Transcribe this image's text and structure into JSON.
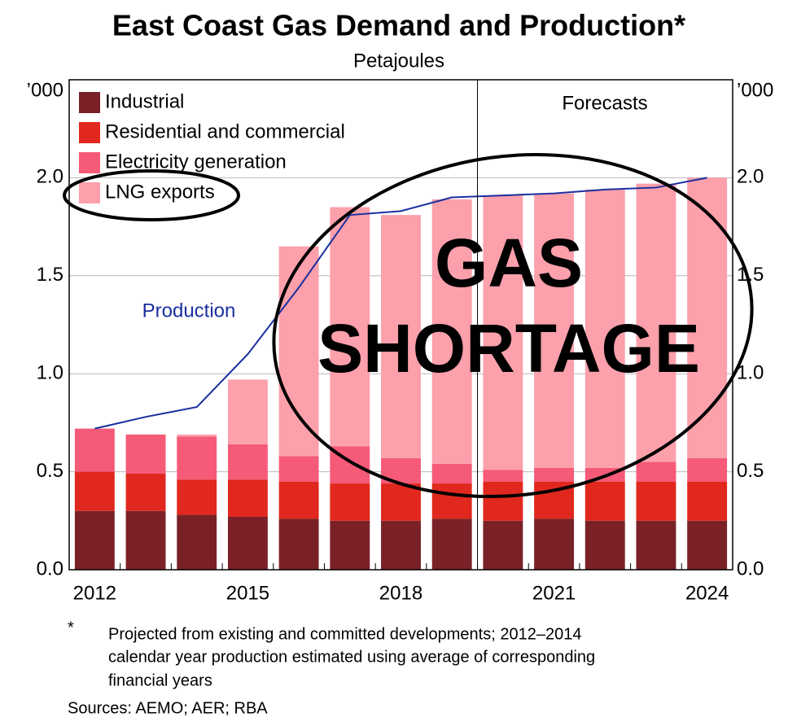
{
  "chart_data": {
    "type": "stacked_bar_line",
    "title": "East Coast Gas Demand and Production*",
    "subtitle": "Petajoules",
    "y_unit": "’000",
    "y2_unit": "’000",
    "categories": [
      "2012",
      null,
      null,
      "2015",
      null,
      null,
      "2018",
      null,
      null,
      "2021",
      null,
      null,
      "2024"
    ],
    "series": [
      {
        "name": "Industrial",
        "color": "#7a2128",
        "values": [
          0.3,
          0.3,
          0.28,
          0.27,
          0.26,
          0.25,
          0.25,
          0.26,
          0.25,
          0.26,
          0.25,
          0.25,
          0.25
        ]
      },
      {
        "name": "Residential and commercial",
        "color": "#e0281e",
        "values": [
          0.2,
          0.19,
          0.18,
          0.19,
          0.19,
          0.19,
          0.19,
          0.18,
          0.2,
          0.19,
          0.2,
          0.2,
          0.2
        ]
      },
      {
        "name": "Electricity generation",
        "color": "#f55a78",
        "values": [
          0.22,
          0.2,
          0.22,
          0.18,
          0.13,
          0.19,
          0.13,
          0.1,
          0.06,
          0.07,
          0.07,
          0.1,
          0.12
        ]
      },
      {
        "name": "LNG exports",
        "color": "#fca0ac",
        "values": [
          0,
          0,
          0.01,
          0.33,
          1.07,
          1.22,
          1.24,
          1.35,
          1.4,
          1.4,
          1.42,
          1.42,
          1.43
        ]
      }
    ],
    "line": {
      "name": "Production",
      "color": "#1a2fa0",
      "values": [
        0.72,
        0.78,
        0.83,
        1.1,
        1.44,
        1.81,
        1.83,
        1.9,
        1.91,
        1.92,
        1.94,
        1.95,
        2.0
      ]
    },
    "ylim": [
      0,
      2.5
    ],
    "yticks": [
      {
        "value": 0,
        "label": "0.0"
      },
      {
        "value": 0.5,
        "label": "0.5"
      },
      {
        "value": 1,
        "label": "1.0"
      },
      {
        "value": 1.5,
        "label": "1.5"
      },
      {
        "value": 2,
        "label": "2.0"
      }
    ],
    "y2lim": [
      0,
      2.5
    ],
    "y2ticks": [
      {
        "value": 0,
        "label": "0.0"
      },
      {
        "value": 0.5,
        "label": "0.5"
      },
      {
        "value": 1,
        "label": "1.0"
      },
      {
        "value": 1.5,
        "label": "1.5"
      },
      {
        "value": 2,
        "label": "2.0"
      }
    ],
    "grid": true,
    "legend": "top-left",
    "forecast_label": "Forecasts",
    "overlay_text": [
      "GAS",
      "SHORTAGE"
    ],
    "footnote_mark": "*",
    "footnote": [
      "Projected from existing and committed developments; 2012–2014",
      "calendar year production estimated using average of corresponding",
      "financial years"
    ],
    "sources": "Sources: AEMO; AER; RBA"
  }
}
